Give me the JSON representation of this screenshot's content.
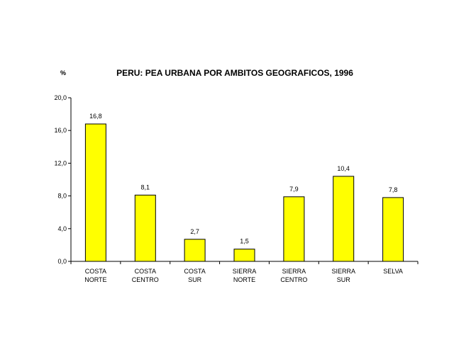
{
  "chart_data": {
    "type": "bar",
    "title": "PERU: PEA URBANA POR AMBITOS GEOGRAFICOS, 1996",
    "ylabel": "%",
    "xlabel": "",
    "ylim": [
      0,
      20
    ],
    "yticks": [
      "0,0",
      "4,0",
      "8,0",
      "12,0",
      "16,0",
      "20,0"
    ],
    "ytick_values": [
      0,
      4,
      8,
      12,
      16,
      20
    ],
    "categories": [
      [
        "COSTA",
        "NORTE"
      ],
      [
        "COSTA",
        "CENTRO"
      ],
      [
        "COSTA",
        "SUR"
      ],
      [
        "SIERRA",
        "NORTE"
      ],
      [
        "SIERRA",
        "CENTRO"
      ],
      [
        "SIERRA",
        "SUR"
      ],
      [
        "SELVA"
      ]
    ],
    "values": [
      16.8,
      8.1,
      2.7,
      1.5,
      7.9,
      10.4,
      7.8
    ],
    "value_labels": [
      "16,8",
      "8,1",
      "2,7",
      "1,5",
      "7,9",
      "10,4",
      "7,8"
    ],
    "grid": false,
    "legend": "none",
    "colors": {
      "bar_fill": "#ffff00",
      "bar_stroke": "#000000",
      "axis": "#000000"
    }
  }
}
